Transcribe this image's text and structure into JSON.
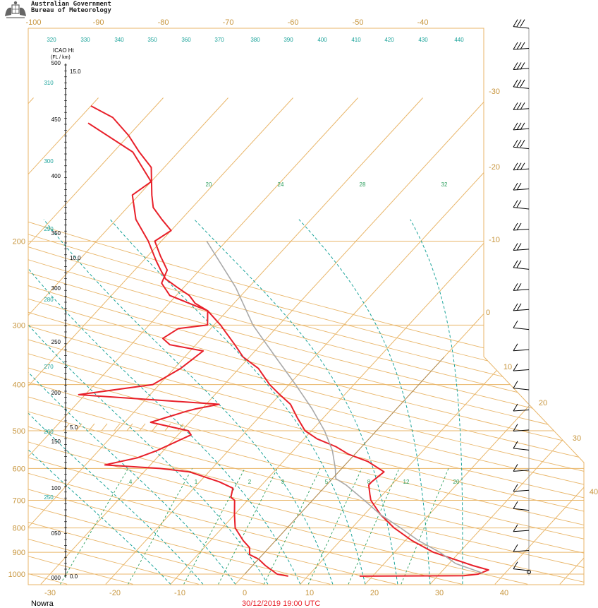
{
  "header": {
    "org_line1": "Australian Government",
    "org_line2": "Bureau of Meteorology",
    "crest_icon": "commonwealth-coat-of-arms"
  },
  "footer": {
    "station": "Nowra",
    "datetime": "30/12/2019  19:00  UTC"
  },
  "colors": {
    "isotherm_isobar": "#e9b66a",
    "moist_adiabat": "#1aa39a",
    "mixing_ratio": "#2a9d5c",
    "temperature": "#e8202a",
    "dewpoint": "#e8202a",
    "parcel": "#a9a9a9",
    "freezing_line": "#b08d57",
    "barb": "#000000"
  },
  "chart_data": {
    "type": "line",
    "diagram": "skew-T log-P",
    "xlabel": "",
    "ylabel": "",
    "pressure_levels": [
      200,
      300,
      400,
      500,
      600,
      700,
      800,
      900,
      1000
    ],
    "bottom_temperature_ticks": [
      -30,
      -20,
      -10,
      0,
      10,
      20,
      30,
      40
    ],
    "top_temperature_ticks": [
      -100,
      -90,
      -80,
      -70,
      -60,
      -50,
      -40
    ],
    "right_isotherm_labels": [
      -30,
      -20,
      -10,
      0,
      10,
      20,
      30,
      40
    ],
    "theta_labels": [
      320,
      330,
      340,
      350,
      360,
      370,
      380,
      390,
      400,
      410,
      420,
      430,
      440,
      310,
      300,
      290,
      280,
      270,
      260,
      250
    ],
    "thetae_labels": [
      20,
      24,
      28,
      32
    ],
    "mixing_ratio_labels": [
      ".4",
      "1",
      "2",
      "3",
      "5",
      "8",
      "12",
      "20"
    ],
    "height_axis_title": "ICAO Ht",
    "height_axis_units": "(FL / km)",
    "height_fl_labels": [
      "500",
      "450",
      "400",
      "350",
      "300",
      "250",
      "200",
      "150",
      "100",
      "050",
      "000"
    ],
    "height_km_labels": [
      "15.0",
      "10.0",
      "5.0",
      "0.0"
    ],
    "series": [
      {
        "role": "temperature",
        "points": [
          [
            1010,
            18
          ],
          [
            1008,
            34
          ],
          [
            1000,
            36
          ],
          [
            980,
            37
          ],
          [
            960,
            34
          ],
          [
            900,
            26
          ],
          [
            850,
            21
          ],
          [
            800,
            16.5
          ],
          [
            750,
            12.5
          ],
          [
            700,
            9
          ],
          [
            680,
            8
          ],
          [
            650,
            6.5
          ],
          [
            640,
            6.5
          ],
          [
            610,
            7
          ],
          [
            580,
            3
          ],
          [
            560,
            -1
          ],
          [
            540,
            -4
          ],
          [
            520,
            -8
          ],
          [
            500,
            -11
          ],
          [
            470,
            -14
          ],
          [
            440,
            -17
          ],
          [
            420,
            -20
          ],
          [
            400,
            -23
          ],
          [
            370,
            -27
          ],
          [
            350,
            -31
          ],
          [
            330,
            -34
          ],
          [
            300,
            -39
          ],
          [
            280,
            -43
          ],
          [
            270,
            -46
          ],
          [
            260,
            -48
          ],
          [
            250,
            -51
          ],
          [
            240,
            -54
          ],
          [
            230,
            -56
          ],
          [
            220,
            -58
          ],
          [
            200,
            -62
          ],
          [
            180,
            -67
          ],
          [
            160,
            -71
          ],
          [
            150,
            -70
          ],
          [
            130,
            -77
          ],
          [
            113,
            -88
          ]
        ]
      },
      {
        "role": "dewpoint",
        "points": [
          [
            1010,
            7
          ],
          [
            1000,
            5
          ],
          [
            960,
            2
          ],
          [
            930,
            0
          ],
          [
            910,
            -2
          ],
          [
            880,
            -3
          ],
          [
            850,
            -5
          ],
          [
            800,
            -8
          ],
          [
            750,
            -10
          ],
          [
            700,
            -12
          ],
          [
            690,
            -13
          ],
          [
            660,
            -14
          ],
          [
            640,
            -17
          ],
          [
            610,
            -23
          ],
          [
            600,
            -28
          ],
          [
            590,
            -37
          ],
          [
            570,
            -33
          ],
          [
            550,
            -31
          ],
          [
            510,
            -28
          ],
          [
            500,
            -29
          ],
          [
            480,
            -36
          ],
          [
            455,
            -32
          ],
          [
            450,
            -31
          ],
          [
            440,
            -28
          ],
          [
            420,
            -51
          ],
          [
            400,
            -41
          ],
          [
            370,
            -39
          ],
          [
            340,
            -38
          ],
          [
            330,
            -44
          ],
          [
            320,
            -46
          ],
          [
            305,
            -45
          ],
          [
            300,
            -41
          ],
          [
            280,
            -43
          ],
          [
            260,
            -51
          ],
          [
            245,
            -54
          ],
          [
            230,
            -55
          ],
          [
            215,
            -58
          ],
          [
            200,
            -61
          ],
          [
            190,
            -60
          ],
          [
            180,
            -63
          ],
          [
            170,
            -66
          ],
          [
            160,
            -68
          ],
          [
            140,
            -72
          ],
          [
            130,
            -76
          ],
          [
            120,
            -80
          ],
          [
            110,
            -85
          ],
          [
            104,
            -90
          ]
        ]
      },
      {
        "role": "parcel",
        "points": [
          [
            995,
            36.5
          ],
          [
            950,
            31
          ],
          [
            900,
            27
          ],
          [
            850,
            22
          ],
          [
            800,
            17.5
          ],
          [
            750,
            12.5
          ],
          [
            700,
            8
          ],
          [
            650,
            3
          ],
          [
            630,
            0.5
          ],
          [
            600,
            -1
          ],
          [
            550,
            -4
          ],
          [
            500,
            -8
          ],
          [
            450,
            -13
          ],
          [
            400,
            -19
          ],
          [
            350,
            -26
          ],
          [
            300,
            -34
          ],
          [
            250,
            -42
          ],
          [
            200,
            -53
          ]
        ]
      },
      {
        "role": "freezing-level-line",
        "points": [
          [
            1000,
            0
          ],
          [
            900,
            0
          ],
          [
            800,
            0
          ],
          [
            700,
            0
          ],
          [
            600,
            0
          ],
          [
            500,
            0
          ],
          [
            400,
            0
          ],
          [
            350,
            0
          ]
        ]
      }
    ],
    "wind_barbs_count": 28
  }
}
